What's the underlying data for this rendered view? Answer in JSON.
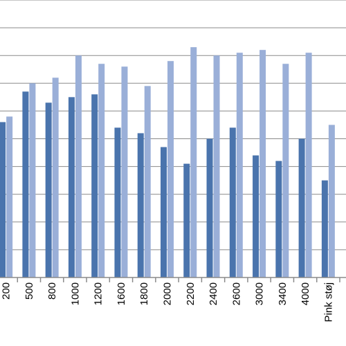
{
  "chart_data": {
    "type": "bar",
    "title": "",
    "xlabel": "",
    "ylabel": "",
    "ylim": [
      0,
      10
    ],
    "grid": true,
    "legend": "none",
    "categories": [
      "200",
      "500",
      "800",
      "1000",
      "1200",
      "1600",
      "1800",
      "2000",
      "2200",
      "2400",
      "2600",
      "3000",
      "3400",
      "4000",
      "Pink støj"
    ],
    "series": [
      {
        "values": [
          5.6,
          6.7,
          6.3,
          6.5,
          6.6,
          5.4,
          5.2,
          4.7,
          4.1,
          5.0,
          5.4,
          4.4,
          4.2,
          5.0,
          3.5
        ]
      },
      {
        "values": [
          5.8,
          7.0,
          7.2,
          8.0,
          7.7,
          7.6,
          6.9,
          7.8,
          8.3,
          8.0,
          8.1,
          8.2,
          7.7,
          8.1,
          5.5
        ]
      }
    ],
    "colors": {
      "series_0": "#4a74ad",
      "series_1": "#9aafd8",
      "grid": "#8a8a8a",
      "axis": "#8a8a8a"
    }
  }
}
